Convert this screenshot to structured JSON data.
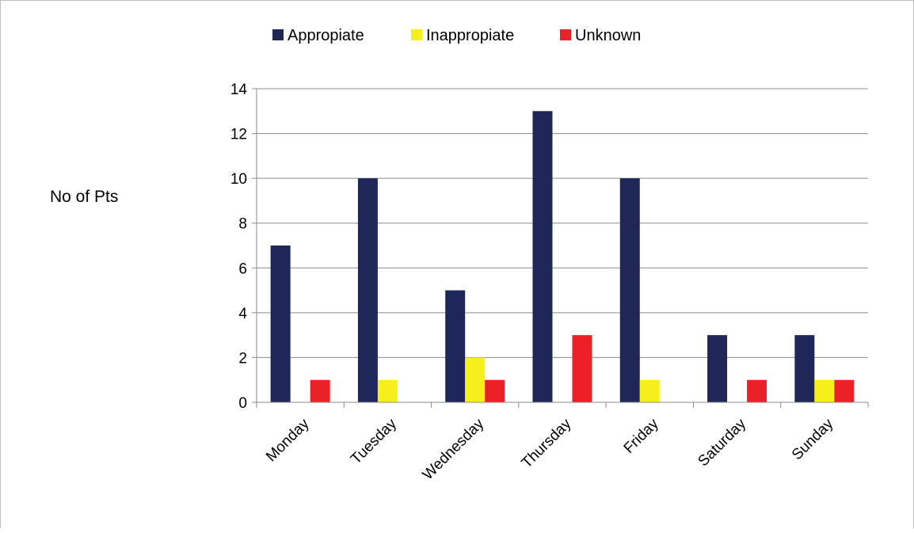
{
  "chart_data": {
    "type": "bar",
    "title": "",
    "xlabel": "",
    "ylabel": "No of Pts",
    "categories": [
      "Monday",
      "Tuesday",
      "Wednesday",
      "Thursday",
      "Friday",
      "Saturday",
      "Sunday"
    ],
    "series": [
      {
        "name": "Appropiate",
        "color": "#1f2759",
        "values": [
          7,
          10,
          5,
          13,
          10,
          3,
          3
        ]
      },
      {
        "name": "Inappropiate",
        "color": "#f5f01a",
        "values": [
          0,
          1,
          2,
          0,
          1,
          0,
          1
        ]
      },
      {
        "name": "Unknown",
        "color": "#ec2128",
        "values": [
          1,
          0,
          1,
          3,
          0,
          1,
          1
        ]
      }
    ],
    "ylim": [
      0,
      14
    ],
    "yticks": [
      "0",
      "2",
      "4",
      "6",
      "8",
      "10",
      "12",
      "14"
    ],
    "grid": true,
    "legend_position": "top"
  }
}
